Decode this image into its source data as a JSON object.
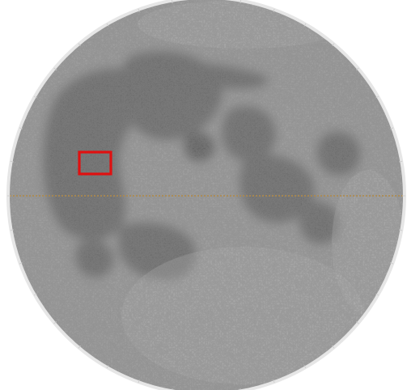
{
  "map": {
    "subject": "lunar-near-side-globe",
    "colors": {
      "background": "#ffffff",
      "highland": "#9a9a9a",
      "highland_light": "#b4b4b4",
      "mare": "#5e5e5e",
      "mare_deep": "#4f4f4f",
      "limb_ring": "#e6e6e6",
      "equator_line": "#b08a4a",
      "highlight_box": "#e01010"
    },
    "equator_line": {
      "visible": true,
      "style": "dotted"
    },
    "highlight": {
      "shape": "rectangle",
      "label": ""
    }
  }
}
